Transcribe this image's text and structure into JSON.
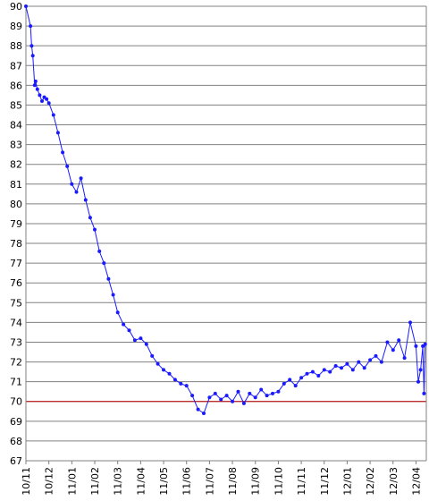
{
  "chart_data": {
    "type": "line",
    "title": "",
    "xlabel": "",
    "ylabel": "",
    "ylim": [
      67,
      90
    ],
    "yticks": [
      67,
      68,
      69,
      70,
      71,
      72,
      73,
      74,
      75,
      76,
      77,
      78,
      79,
      80,
      81,
      82,
      83,
      84,
      85,
      86,
      87,
      88,
      89,
      90
    ],
    "categories": [
      "10/11",
      "10/12",
      "11/01",
      "11/02",
      "11/03",
      "11/04",
      "11/05",
      "11/06",
      "11/07",
      "11/08",
      "11/09",
      "11/10",
      "11/11",
      "11/12",
      "12/01",
      "12/02",
      "12/03",
      "12/04"
    ],
    "grid": true,
    "legend": "none",
    "reference_line": {
      "value": 70,
      "color": "#c00000"
    },
    "series_color": "#1a1aff",
    "grid_color": "#808080",
    "series": [
      {
        "name": "",
        "x": [
          0,
          0.2,
          0.25,
          0.3,
          0.38,
          0.42,
          0.5,
          0.6,
          0.7,
          0.8,
          0.9,
          1,
          1.2,
          1.4,
          1.6,
          1.8,
          2,
          2.2,
          2.4,
          2.6,
          2.8,
          3,
          3.2,
          3.4,
          3.6,
          3.8,
          4,
          4.25,
          4.5,
          4.75,
          5,
          5.25,
          5.5,
          5.75,
          6,
          6.25,
          6.5,
          6.75,
          7,
          7.25,
          7.5,
          7.75,
          8,
          8.25,
          8.5,
          8.75,
          9,
          9.25,
          9.5,
          9.75,
          10,
          10.25,
          10.5,
          10.75,
          11,
          11.25,
          11.5,
          11.75,
          12,
          12.25,
          12.5,
          12.75,
          13,
          13.25,
          13.5,
          13.75,
          14,
          14.25,
          14.5,
          14.75,
          15,
          15.25,
          15.5,
          15.75,
          16,
          16.25,
          16.5,
          16.75,
          17,
          17.1,
          17.2,
          17.3,
          17.35,
          17.4
        ],
        "values": [
          90,
          89,
          88,
          87.5,
          86,
          86.2,
          85.8,
          85.5,
          85.2,
          85.4,
          85.3,
          85.1,
          84.5,
          83.6,
          82.6,
          81.9,
          81,
          80.6,
          81.3,
          80.2,
          79.3,
          78.7,
          77.6,
          77,
          76.2,
          75.4,
          74.5,
          73.9,
          73.6,
          73.1,
          73.2,
          72.9,
          72.3,
          71.9,
          71.6,
          71.4,
          71.1,
          70.9,
          70.8,
          70.3,
          69.6,
          69.4,
          70.2,
          70.4,
          70.1,
          70.3,
          70.0,
          70.5,
          69.9,
          70.4,
          70.2,
          70.6,
          70.3,
          70.4,
          70.5,
          70.9,
          71.1,
          70.8,
          71.2,
          71.4,
          71.5,
          71.3,
          71.6,
          71.5,
          71.8,
          71.7,
          71.9,
          71.6,
          72.0,
          71.7,
          72.1,
          72.3,
          72.0,
          73.0,
          72.6,
          73.1,
          72.2,
          74.0,
          72.8,
          71.0,
          71.6,
          72.8,
          70.4,
          72.9
        ]
      }
    ]
  }
}
